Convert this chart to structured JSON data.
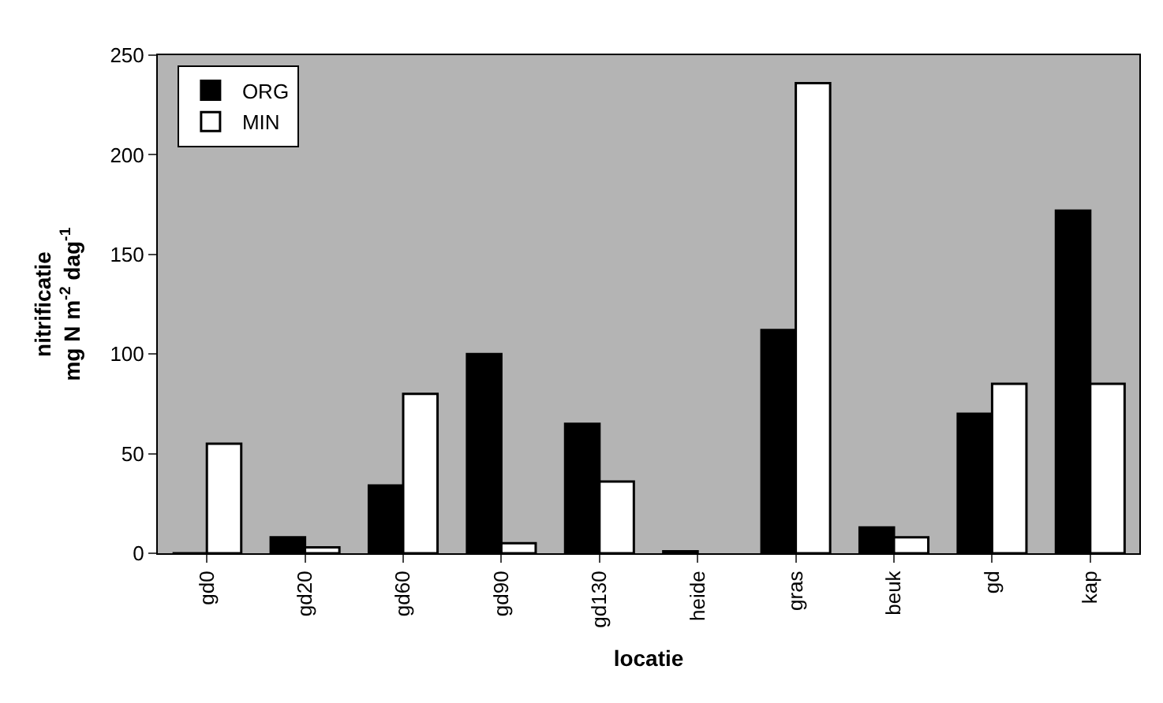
{
  "chart_data": {
    "type": "bar",
    "xlabel": "locatie",
    "ylabel": "nitrificatie\nmg N m$^{-2}$ dag$^{-1}$",
    "categories": [
      "gd0",
      "gd20",
      "gd60",
      "gd90",
      "gd130",
      "heide",
      "gras",
      "beuk",
      "gd",
      "kap"
    ],
    "series": [
      {
        "name": "ORG",
        "color": "#000000",
        "values": [
          0,
          8,
          34,
          100,
          65,
          1,
          112,
          13,
          70,
          172
        ]
      },
      {
        "name": "MIN",
        "color": "#ffffff",
        "values": [
          55,
          3,
          80,
          5,
          36,
          null,
          236,
          8,
          85,
          85
        ]
      }
    ],
    "ylim": [
      0,
      250
    ],
    "yticks": [
      0,
      50,
      100,
      150,
      200,
      250
    ],
    "grid": false,
    "legend": "top left"
  }
}
